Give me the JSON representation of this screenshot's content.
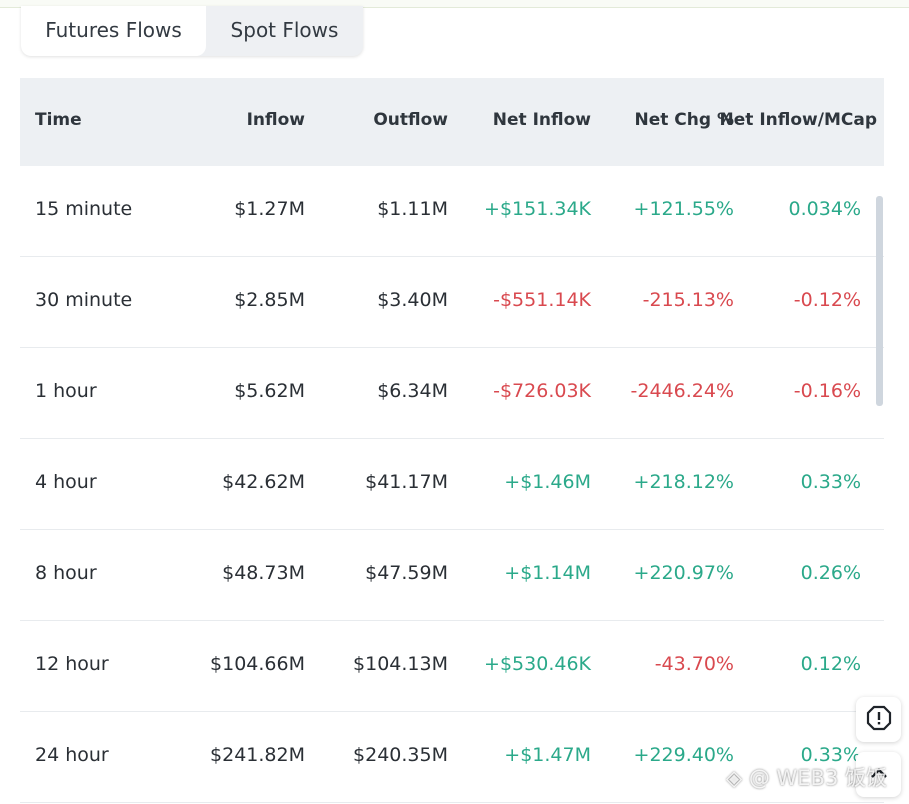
{
  "tabs": [
    {
      "label": "Futures Flows",
      "active": true
    },
    {
      "label": "Spot Flows",
      "active": false
    }
  ],
  "table": {
    "headers": {
      "time": "Time",
      "inflow": "Inflow",
      "outflow": "Outflow",
      "net_inflow": "Net Inflow",
      "net_chg": "Net Chg %",
      "net_mcap": "Net Inflow/MCap"
    },
    "rows": [
      {
        "time": "15 minute",
        "inflow": "$1.27M",
        "outflow": "$1.11M",
        "net_inflow": "+$151.34K",
        "net_chg": "+121.55%",
        "net_mcap": "0.034%"
      },
      {
        "time": "30 minute",
        "inflow": "$2.85M",
        "outflow": "$3.40M",
        "net_inflow": "-$551.14K",
        "net_chg": "-215.13%",
        "net_mcap": "-0.12%"
      },
      {
        "time": "1 hour",
        "inflow": "$5.62M",
        "outflow": "$6.34M",
        "net_inflow": "-$726.03K",
        "net_chg": "-2446.24%",
        "net_mcap": "-0.16%"
      },
      {
        "time": "4 hour",
        "inflow": "$42.62M",
        "outflow": "$41.17M",
        "net_inflow": "+$1.46M",
        "net_chg": "+218.12%",
        "net_mcap": "0.33%"
      },
      {
        "time": "8 hour",
        "inflow": "$48.73M",
        "outflow": "$47.59M",
        "net_inflow": "+$1.14M",
        "net_chg": "+220.97%",
        "net_mcap": "0.26%"
      },
      {
        "time": "12 hour",
        "inflow": "$104.66M",
        "outflow": "$104.13M",
        "net_inflow": "+$530.46K",
        "net_chg": "-43.70%",
        "net_mcap": "0.12%"
      },
      {
        "time": "24 hour",
        "inflow": "$241.82M",
        "outflow": "$240.35M",
        "net_inflow": "+$1.47M",
        "net_chg": "+229.40%",
        "net_mcap": "0.33%"
      }
    ]
  },
  "colors": {
    "positive": "#2ba98a",
    "negative": "#d9494f",
    "header_bg": "#edf0f3"
  },
  "floating_buttons": [
    {
      "icon": "report-icon"
    },
    {
      "icon": "back-to-top-icon"
    }
  ],
  "watermark": "◈ @ WEB3 饭饭"
}
